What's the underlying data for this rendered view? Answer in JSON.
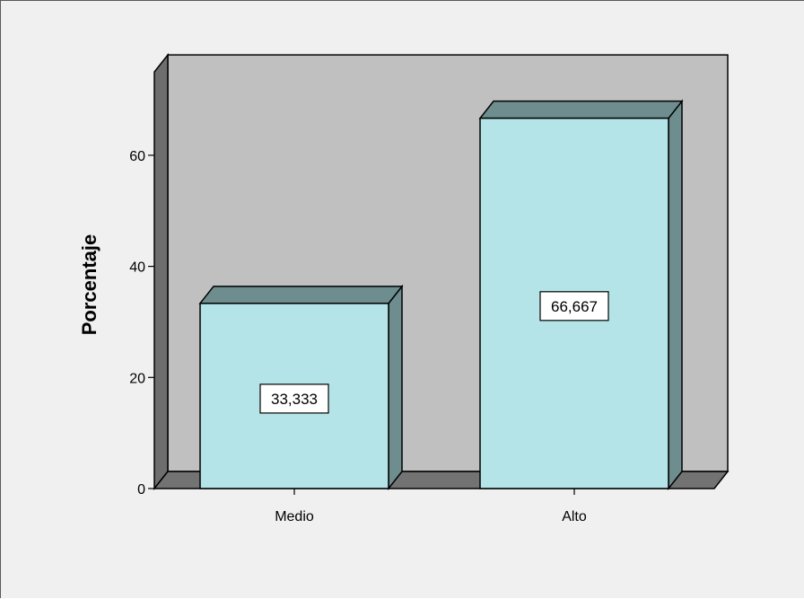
{
  "chart_data": {
    "type": "bar",
    "title": "",
    "xlabel": "",
    "ylabel": "Porcentaje",
    "categories": [
      "Medio",
      "Alto"
    ],
    "values": [
      33.333,
      66.667
    ],
    "value_labels": [
      "33,333",
      "66,667"
    ],
    "ylim": [
      0,
      75
    ],
    "yticks": [
      0,
      20,
      40,
      60
    ],
    "ytick_labels": [
      "0",
      "20",
      "40",
      "60"
    ],
    "grid": false,
    "legend": "none",
    "style": "3d",
    "colors": {
      "bar_front": "#b4e4e7",
      "bar_top": "#6d8d8e",
      "bar_side": "#6d8d8e",
      "back_wall": "#c0c0c0",
      "side_wall": "#6e6e6e",
      "floor": "#737373",
      "background": "#f0f0f0"
    }
  }
}
